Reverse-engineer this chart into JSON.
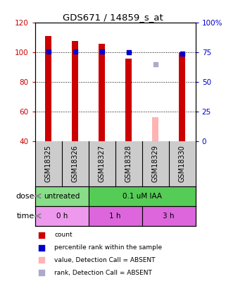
{
  "title": "GDS671 / 14859_s_at",
  "samples": [
    "GSM18325",
    "GSM18326",
    "GSM18327",
    "GSM18328",
    "GSM18329",
    "GSM18330"
  ],
  "bar_values": [
    111,
    108,
    106,
    96,
    null,
    100
  ],
  "bar_colors": [
    "#cc0000",
    "#cc0000",
    "#cc0000",
    "#cc0000",
    null,
    "#cc0000"
  ],
  "absent_bar_value": 56,
  "absent_bar_color": "#ffb3b3",
  "rank_values": [
    76,
    76,
    76,
    75,
    null,
    74
  ],
  "rank_color": "#0000cc",
  "absent_rank_value": 65,
  "absent_rank_color": "#aaaacc",
  "absent_sample_idx": 4,
  "ylim_left": [
    40,
    120
  ],
  "ylim_right": [
    0,
    100
  ],
  "yticks_left": [
    40,
    60,
    80,
    100,
    120
  ],
  "yticks_right": [
    0,
    25,
    50,
    75,
    100
  ],
  "ytick_labels_right": [
    "0",
    "25",
    "50",
    "75",
    "100%"
  ],
  "left_tick_color": "#cc0000",
  "right_tick_color": "#0000cc",
  "dose_labels": [
    {
      "text": "untreated",
      "span": [
        0,
        2
      ],
      "color": "#88dd88"
    },
    {
      "text": "0.1 uM IAA",
      "span": [
        2,
        6
      ],
      "color": "#55cc55"
    }
  ],
  "time_labels": [
    {
      "text": "0 h",
      "span": [
        0,
        2
      ],
      "color": "#ee99ee"
    },
    {
      "text": "1 h",
      "span": [
        2,
        4
      ],
      "color": "#dd66dd"
    },
    {
      "text": "3 h",
      "span": [
        4,
        6
      ],
      "color": "#dd66dd"
    }
  ],
  "legend_items": [
    {
      "color": "#cc0000",
      "label": "count"
    },
    {
      "color": "#0000cc",
      "label": "percentile rank within the sample"
    },
    {
      "color": "#ffb3b3",
      "label": "value, Detection Call = ABSENT"
    },
    {
      "color": "#aaaacc",
      "label": "rank, Detection Call = ABSENT"
    }
  ],
  "dose_arrow_label": "dose",
  "time_arrow_label": "time",
  "bar_width": 0.25,
  "grid_lines": [
    60,
    80,
    100
  ],
  "xlabel_bg_color": "#cccccc"
}
